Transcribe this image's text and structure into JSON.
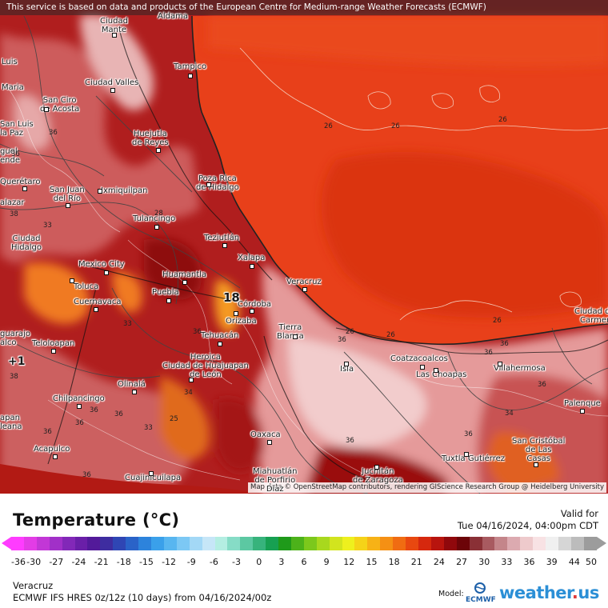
{
  "banner": "This service is based on data and products of the European Centre for Medium-range Weather Forecasts (ECMWF)",
  "attribution": "Map data © OpenStreetMap contributors, rendering GIScience Research Group @ Heidelberg University",
  "cities": [
    {
      "name": "Aldama"
    },
    {
      "name": "Ciudad\nMante"
    },
    {
      "name": "Tampico"
    },
    {
      "name": "Luis"
    },
    {
      "name": "Maria"
    },
    {
      "name": "Ciudad Valles"
    },
    {
      "name": "San Ciro\nde Acosta"
    },
    {
      "name": "San Luis\nla Paz"
    },
    {
      "name": "guel\nende"
    },
    {
      "name": "Huejutla\nde Reyes"
    },
    {
      "name": "Poza Rica\nde Hidalgo"
    },
    {
      "name": "Querétaro"
    },
    {
      "name": "San Juan\ndel Río"
    },
    {
      "name": "Ixmiquilpan"
    },
    {
      "name": "alazar"
    },
    {
      "name": "Tulancingo"
    },
    {
      "name": "Ciudad\nHidalgo"
    },
    {
      "name": "Teziutlán"
    },
    {
      "name": "Xalapa"
    },
    {
      "name": "Mexico City"
    },
    {
      "name": "Huamantla"
    },
    {
      "name": "Toluca"
    },
    {
      "name": "Veracruz"
    },
    {
      "name": "Puebla"
    },
    {
      "name": "Cuernavaca"
    },
    {
      "name": "Córdoba"
    },
    {
      "name": "Orizaba"
    },
    {
      "name": "Ciudad del\nCarmen"
    },
    {
      "name": "Tierra\nBlanca"
    },
    {
      "name": "Tehuacán"
    },
    {
      "name": "Teloloapan"
    },
    {
      "name": "guarajo\nalco"
    },
    {
      "name": "Heroica\nCiudad de Huajuapan\nde León"
    },
    {
      "name": "Coatzacoalcos"
    },
    {
      "name": "Isla"
    },
    {
      "name": "Las Choapas"
    },
    {
      "name": "Villahermosa"
    },
    {
      "name": "Olinalá"
    },
    {
      "name": "Chilpancingo"
    },
    {
      "name": "Palenque"
    },
    {
      "name": "apan\nleana"
    },
    {
      "name": "Oaxaca"
    },
    {
      "name": "San Cristóbal\nde Las\nCasas"
    },
    {
      "name": "Acapulco"
    },
    {
      "name": "Tuxtla Gutiérrez"
    },
    {
      "name": "Miahuatlán\nde Porfirio\nDíaz"
    },
    {
      "name": "Juchitán\nde Zaragoza"
    },
    {
      "name": "Cuajinicuilapa"
    }
  ],
  "isolines": [
    "36",
    "26",
    "26",
    "26",
    "26",
    "26",
    "26",
    "36",
    "36",
    "38",
    "36",
    "36",
    "36",
    "36",
    "36",
    "36",
    "36",
    "34",
    "34",
    "36",
    "36",
    "36",
    "36",
    "25",
    "28",
    "33",
    "38",
    "33",
    "33"
  ],
  "markers": [
    "18",
    "+1"
  ],
  "legend": {
    "title": "Temperature (°C)",
    "valid_label": "Valid for",
    "valid_time": "Tue 04/16/2024, 04:00pm CDT",
    "ticks": [
      "-36",
      "-30",
      "-27",
      "-24",
      "-21",
      "-18",
      "-15",
      "-12",
      "-9",
      "-6",
      "-3",
      "0",
      "3",
      "6",
      "9",
      "12",
      "15",
      "18",
      "21",
      "24",
      "27",
      "30",
      "33",
      "36",
      "39",
      "44",
      "50"
    ],
    "colors": [
      "#ff3cff",
      "#e33ce6",
      "#c237d6",
      "#a130c8",
      "#8228b8",
      "#6a1fa8",
      "#531a9a",
      "#3e2da0",
      "#2f46b4",
      "#2a63c8",
      "#2d83dc",
      "#3aa0ea",
      "#58b6f0",
      "#7cc8f4",
      "#a3d8f6",
      "#c6e6f7",
      "#b4eee2",
      "#86dcc6",
      "#5cc8a2",
      "#37b37c",
      "#17a052",
      "#1f9a1a",
      "#4cb21a",
      "#7cc81c",
      "#a8d81e",
      "#d2e41e",
      "#eef01e",
      "#f5d318",
      "#f7b216",
      "#f59014",
      "#f06c12",
      "#e84810",
      "#d6280e",
      "#b8140e",
      "#90080c",
      "#6c0408",
      "#8a3036",
      "#a85a60",
      "#c4858a",
      "#dcaab0",
      "#eecacc",
      "#f8e2e4",
      "#f0f0f0",
      "#d6d6d6",
      "#bcbcbc",
      "#9c9c9c"
    ],
    "region": "Veracruz",
    "model_text": "ECMWF IFS HRES 0z/12z (10 days) from  04/16/2024/00z",
    "model_label": "Model:",
    "ecmwf_logo": "ECMWF",
    "brand": "weather.us",
    "brand_dot_color": "#e03a3a",
    "brand_color": "#2b8fd6"
  }
}
